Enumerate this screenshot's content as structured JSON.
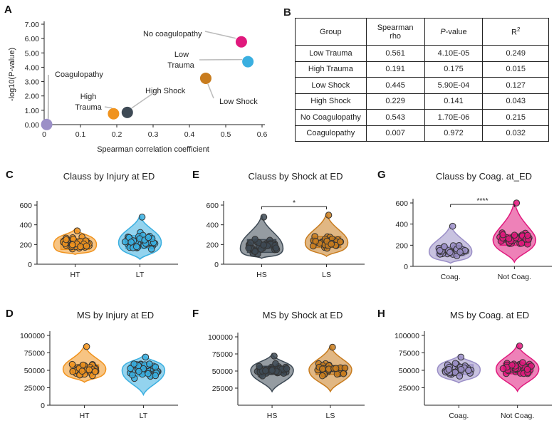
{
  "panels": {
    "A": "A",
    "B": "B",
    "C": "C",
    "D": "D",
    "E": "E",
    "F": "F",
    "G": "G",
    "H": "H"
  },
  "colors": {
    "coag": "#9b8fc7",
    "not_coag": "#e0197d",
    "ht": "#f0931e",
    "lt": "#3aafe0",
    "hs": "#3e4a55",
    "ls": "#c87c1e",
    "grey": "#bbbbbb"
  },
  "chart_data": [
    {
      "id": "A",
      "type": "scatter",
      "xlabel": "Spearman correlation coefficient",
      "ylabel": "-log10(P-value)",
      "xlim": [
        0,
        0.6
      ],
      "ylim": [
        0,
        7
      ],
      "xticks": [
        "0",
        "0.1",
        "0.2",
        "0.3",
        "0.4",
        "0.5",
        "0.6"
      ],
      "yticks": [
        "0.00",
        "1.00",
        "2.00",
        "3.00",
        "4.00",
        "5.00",
        "6.00",
        "7.00"
      ],
      "points": [
        {
          "label": "Low Trauma",
          "x": 0.561,
          "y": 4.39,
          "color": "#3aafe0"
        },
        {
          "label": "High Trauma",
          "x": 0.191,
          "y": 0.76,
          "color": "#f0931e"
        },
        {
          "label": "Low Shock",
          "x": 0.445,
          "y": 3.23,
          "color": "#c87c1e"
        },
        {
          "label": "High Shock",
          "x": 0.229,
          "y": 0.85,
          "color": "#3e4a55"
        },
        {
          "label": "No coagulopathy",
          "x": 0.543,
          "y": 5.77,
          "color": "#e0197d"
        },
        {
          "label": "Coagulopathy",
          "x": 0.007,
          "y": 0.01,
          "color": "#9b8fc7"
        }
      ],
      "annotations": {
        "no_coag": "No coagulopathy",
        "low_trauma_1": "Low",
        "low_trauma_2": "Trauma",
        "low_shock": "Low Shock",
        "high_shock": "High Shock",
        "high_trauma_1": "High",
        "high_trauma_2": "Trauma",
        "coag": "Coagulopathy"
      }
    },
    {
      "id": "B",
      "type": "table",
      "headers": [
        "Group",
        "Spearman rho",
        "P-value",
        "R2"
      ],
      "header_display": {
        "group": "Group",
        "rho_1": "Spearman",
        "rho_2": "rho",
        "p_italic": "P",
        "p_rest": "-value",
        "r": "R",
        "r_sup": "2"
      },
      "rows": [
        [
          "Low Trauma",
          "0.561",
          "4.10E-05",
          "0.249"
        ],
        [
          "High Trauma",
          "0.191",
          "0.175",
          "0.015"
        ],
        [
          "Low Shock",
          "0.445",
          "5.90E-04",
          "0.127"
        ],
        [
          "High Shock",
          "0.229",
          "0.141",
          "0.043"
        ],
        [
          "No Coagulopathy",
          "0.543",
          "1.70E-06",
          "0.215"
        ],
        [
          "Coagulopathy",
          "0.007",
          "0.972",
          "0.032"
        ]
      ]
    },
    {
      "id": "C",
      "type": "violin",
      "title": "Clauss by Injury at ED",
      "categories": [
        "HT",
        "LT"
      ],
      "ylim": [
        0,
        600
      ],
      "yticks": [
        0,
        200,
        400,
        600
      ],
      "series": [
        {
          "category": "HT",
          "color": "#f0931e",
          "median": 200,
          "q1": 150,
          "q3": 260,
          "min": 100,
          "max": 360
        },
        {
          "category": "LT",
          "color": "#3aafe0",
          "median": 220,
          "q1": 160,
          "q3": 290,
          "min": 50,
          "max": 500
        }
      ],
      "significance": ""
    },
    {
      "id": "E",
      "type": "violin",
      "title": "Clauss by Shock at ED",
      "categories": [
        "HS",
        "LS"
      ],
      "ylim": [
        0,
        600
      ],
      "yticks": [
        0,
        200,
        400,
        600
      ],
      "series": [
        {
          "category": "HS",
          "color": "#3e4a55",
          "median": 160,
          "q1": 120,
          "q3": 250,
          "min": 60,
          "max": 500
        },
        {
          "category": "LS",
          "color": "#c87c1e",
          "median": 220,
          "q1": 170,
          "q3": 280,
          "min": 80,
          "max": 520
        }
      ],
      "significance": "*"
    },
    {
      "id": "G",
      "type": "violin",
      "title": "Clauss by Coag. at_ED",
      "categories": [
        "Coag.",
        "Not Coag."
      ],
      "ylim": [
        0,
        600
      ],
      "yticks": [
        0,
        200,
        400,
        600
      ],
      "series": [
        {
          "category": "Coag.",
          "color": "#9b8fc7",
          "median": 140,
          "q1": 100,
          "q3": 190,
          "min": 30,
          "max": 400
        },
        {
          "category": "Not Coag.",
          "color": "#e0197d",
          "median": 250,
          "q1": 200,
          "q3": 300,
          "min": 40,
          "max": 620
        }
      ],
      "significance": "****"
    },
    {
      "id": "D",
      "type": "violin",
      "title": "MS by Injury at ED",
      "categories": [
        "HT",
        "LT"
      ],
      "ylim": [
        0,
        100000
      ],
      "yticks": [
        0,
        25000,
        50000,
        75000,
        100000
      ],
      "series": [
        {
          "category": "HT",
          "color": "#f0931e",
          "median": 52000,
          "q1": 45000,
          "q3": 58000,
          "min": 33000,
          "max": 87000
        },
        {
          "category": "LT",
          "color": "#3aafe0",
          "median": 50000,
          "q1": 42000,
          "q3": 58000,
          "min": 15000,
          "max": 72000
        }
      ],
      "significance": ""
    },
    {
      "id": "F",
      "type": "violin",
      "title": "MS by Shock at ED",
      "categories": [
        "HS",
        "LS"
      ],
      "ylim": [
        0,
        100000
      ],
      "yticks": [
        25000,
        50000,
        75000,
        100000
      ],
      "series": [
        {
          "category": "HS",
          "color": "#3e4a55",
          "median": 51000,
          "q1": 45000,
          "q3": 57000,
          "min": 20000,
          "max": 75000
        },
        {
          "category": "LS",
          "color": "#c87c1e",
          "median": 52000,
          "q1": 45000,
          "q3": 58000,
          "min": 20000,
          "max": 88000
        }
      ],
      "significance": ""
    },
    {
      "id": "H",
      "type": "violin",
      "title": "MS by Coag. at ED",
      "categories": [
        "Coag.",
        "Not Coag."
      ],
      "ylim": [
        0,
        100000
      ],
      "yticks": [
        25000,
        50000,
        75000,
        100000
      ],
      "series": [
        {
          "category": "Coag.",
          "color": "#9b8fc7",
          "median": 51000,
          "q1": 44000,
          "q3": 58000,
          "min": 32000,
          "max": 72000
        },
        {
          "category": "Not Coag.",
          "color": "#e0197d",
          "median": 52000,
          "q1": 45000,
          "q3": 60000,
          "min": 20000,
          "max": 88000
        }
      ],
      "significance": ""
    }
  ]
}
